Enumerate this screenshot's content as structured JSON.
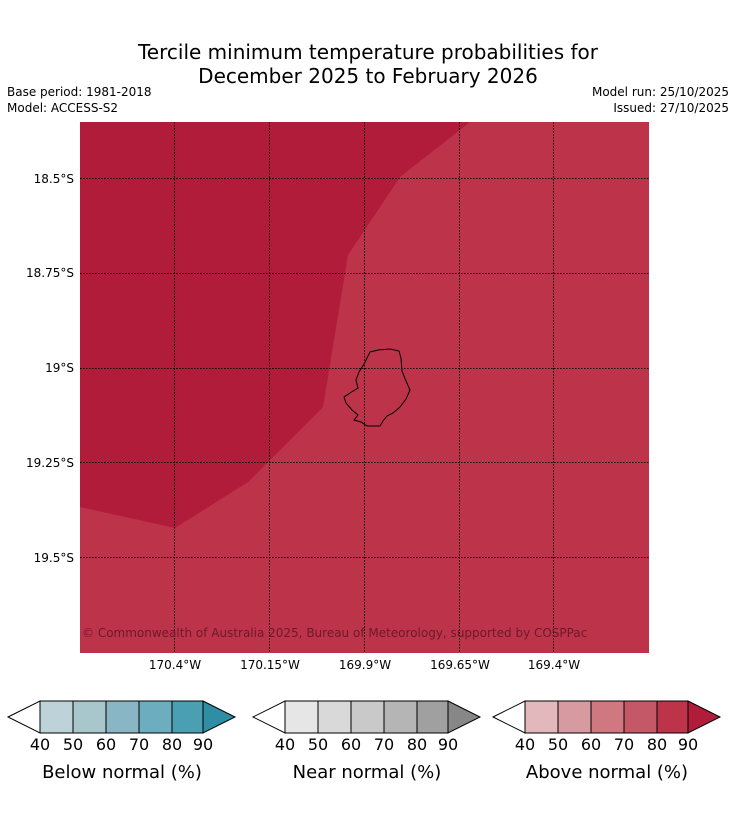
{
  "title_line1": "Tercile minimum temperature probabilities for",
  "title_line2": "December 2025 to February 2026",
  "meta": {
    "base_period": "Base period: 1981-2018",
    "model": "Model: ACCESS-S2",
    "model_run": "Model run: 25/10/2025",
    "issued": "Issued: 27/10/2025"
  },
  "map": {
    "y_labels": [
      "18.5°S",
      "18.75°S",
      "19°S",
      "19.25°S",
      "19.5°S"
    ],
    "x_labels": [
      "170.4°W",
      "170.15°W",
      "169.9°W",
      "169.65°W",
      "169.4°W"
    ],
    "regions": [
      {
        "name": "above-normal-80-90",
        "color": "#bd334a"
      },
      {
        "name": "above-normal-90-plus",
        "color": "#b01c3a"
      }
    ],
    "copyright": "© Commonwealth of Australia 2025, Bureau of Meteorology, supported by COSPPac"
  },
  "colorbars": [
    {
      "label": "Below normal (%)",
      "ticks": [
        "40",
        "50",
        "60",
        "70",
        "80",
        "90"
      ],
      "colors": [
        "#bed3d9",
        "#a7c7cc",
        "#88b6c4",
        "#6caebf",
        "#4b9fb3"
      ],
      "extend_color": "#2f8ea4"
    },
    {
      "label": "Near normal (%)",
      "ticks": [
        "40",
        "50",
        "60",
        "70",
        "80",
        "90"
      ],
      "colors": [
        "#e6e6e6",
        "#d9d9d9",
        "#c9c9c9",
        "#b5b5b5",
        "#a0a0a0"
      ],
      "extend_color": "#878787"
    },
    {
      "label": "Above normal (%)",
      "ticks": [
        "40",
        "50",
        "60",
        "70",
        "80",
        "90"
      ],
      "colors": [
        "#e2b8bd",
        "#d79aa1",
        "#cf7880",
        "#c55866",
        "#bd334a"
      ],
      "extend_color": "#b01c3a"
    }
  ]
}
